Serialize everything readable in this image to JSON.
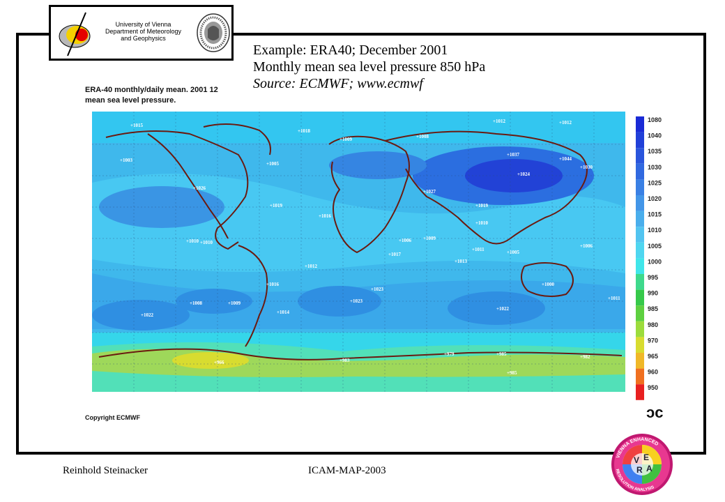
{
  "logo": {
    "line1": "University of Vienna",
    "line2": "Department of Meteorology",
    "line3": "and Geophysics"
  },
  "headline": {
    "line1": "Example: ERA40; December 2001",
    "line2": "Monthly mean sea level pressure 850 hPa",
    "line3": "Source: ECMWF; www.ecmwf"
  },
  "map": {
    "title1": "ERA-40 monthly/daily mean.  2001 12",
    "title2": "mean sea level pressure.",
    "copyright": "Copyright ECMWF",
    "colorbar": {
      "labels": [
        "1080",
        "1040",
        "1035",
        "1030",
        "1025",
        "1020",
        "1015",
        "1010",
        "1005",
        "1000",
        "995",
        "990",
        "985",
        "980",
        "970",
        "965",
        "960",
        "950"
      ],
      "colors": [
        "#1a2bd6",
        "#2140d8",
        "#2a55dc",
        "#3169e0",
        "#3a80e4",
        "#4396e8",
        "#4aaeec",
        "#52c4f0",
        "#4fd6f0",
        "#40e6ea",
        "#3ed98c",
        "#36c94a",
        "#5ed040",
        "#9cdc3c",
        "#d8dc30",
        "#f0b828",
        "#f07020",
        "#e82020"
      ]
    },
    "highs": [
      "1015",
      "1018",
      "1009",
      "1008",
      "1012",
      "1012",
      "1003",
      "1005",
      "1026",
      "1019",
      "1016",
      "1024",
      "1037",
      "1044",
      "1030",
      "1027",
      "1019",
      "1010",
      "1010",
      "1010",
      "1006",
      "1009",
      "1017",
      "1013",
      "1012",
      "1011",
      "1005",
      "1006",
      "1016",
      "1023",
      "1008",
      "1009",
      "1023",
      "1022",
      "1022",
      "1014",
      "1000",
      "1011"
    ],
    "lows": [
      "966",
      "983",
      "979",
      "985",
      "982",
      "985"
    ]
  },
  "footer": {
    "author": "Reinhold Steinacker",
    "event": "ICAM-MAP-2003"
  },
  "vera": {
    "ring_text_top": "VIENNA ENHANCED",
    "ring_text_bottom": "RESOLUTION ANALYSIS",
    "letters": [
      "V",
      "E",
      "R",
      "A"
    ]
  }
}
